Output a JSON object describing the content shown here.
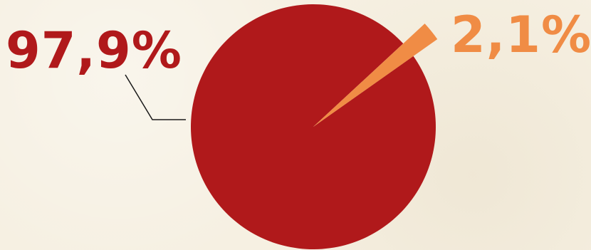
{
  "colors": {
    "background": "#f6f0e2",
    "major": "#b0191b",
    "minor": "#f08c45",
    "leader_line": "#1a1a1a"
  },
  "chart_data": {
    "type": "pie",
    "slices": [
      {
        "value": 97.9,
        "label": "97,9%",
        "color": "#b0191b"
      },
      {
        "value": 2.1,
        "label": "2,1%",
        "color": "#f08c45"
      }
    ]
  }
}
